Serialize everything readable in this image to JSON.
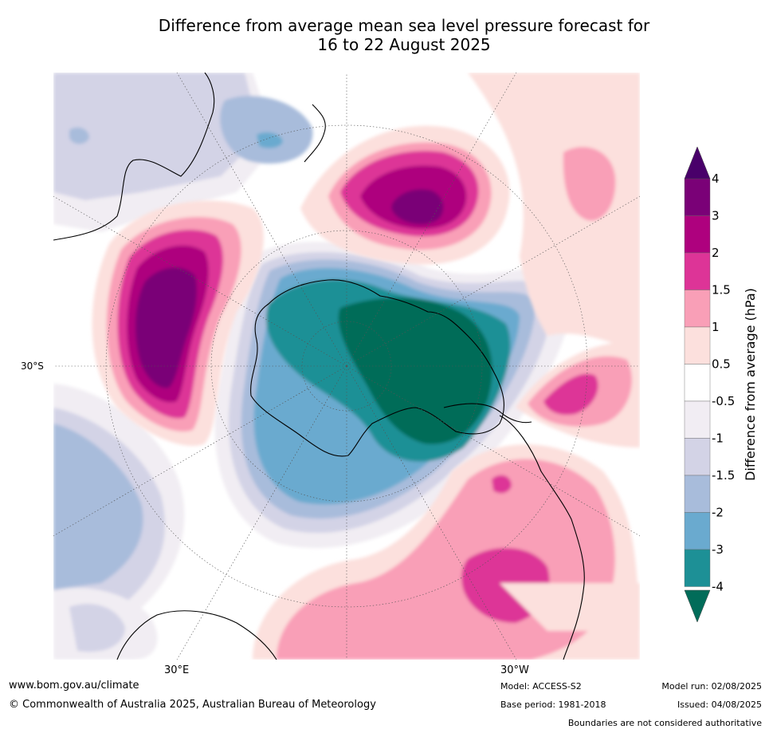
{
  "title": {
    "line1": "Difference from average mean sea level pressure forecast for",
    "line2": "16 to 22 August 2025"
  },
  "map": {
    "projection": "south-polar-stereographic",
    "lat_label": "30°S",
    "lon_labels": {
      "east": "30°E",
      "west": "30°W"
    },
    "colors": {
      "ocean_white": "#ffffff",
      "neg_0_5_1": "#f1edf3",
      "neg_1_1_5": "#d3d3e6",
      "neg_1_5_2": "#a8bcdb",
      "neg_2_3": "#6aaacf",
      "neg_3_4": "#1d9096",
      "neg_4_plus": "#016c59",
      "pos_0_5_1": "#fce0dd",
      "pos_1_1_5": "#f99fb7",
      "pos_1_5_2": "#dd3497",
      "pos_2_3": "#ae017e",
      "pos_3_4": "#7a0177",
      "pos_4_plus": "#49006a",
      "coastline": "#000000"
    }
  },
  "colorbar": {
    "label": "Difference from average (hPa)",
    "ticks": [
      "4",
      "3",
      "2",
      "1.5",
      "1",
      "0.5",
      "-0.5",
      "-1",
      "-1.5",
      "-2",
      "-3",
      "-4"
    ],
    "bands": [
      "#7a0177",
      "#ae017e",
      "#dd3497",
      "#f99fb7",
      "#fce0dd",
      "#ffffff",
      "#f1edf3",
      "#d3d3e6",
      "#a8bcdb",
      "#6aaacf",
      "#1d9096"
    ],
    "top_arrow_color": "#49006a",
    "bottom_arrow_color": "#016c59"
  },
  "footer": {
    "website": "www.bom.gov.au/climate",
    "copyright": "© Commonwealth of Australia 2025, Australian Bureau of Meteorology",
    "model": "Model: ACCESS-S2",
    "base_period": "Base period: 1981-2018",
    "model_run": "Model run: 02/08/2025",
    "issued": "Issued: 04/08/2025",
    "disclaimer": "Boundaries are not considered authoritative"
  }
}
